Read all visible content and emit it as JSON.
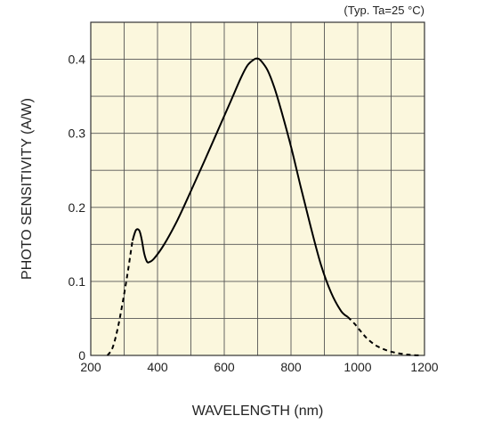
{
  "chart_data": {
    "type": "line",
    "title": "",
    "annotation": "(Typ. Ta=25 °C)",
    "xlabel": "WAVELENGTH (nm)",
    "ylabel": "PHOTO SENSITIVITY (A/W)",
    "xlim": [
      200,
      1200
    ],
    "ylim": [
      0,
      0.45
    ],
    "xticks": [
      200,
      400,
      600,
      800,
      1000,
      1200
    ],
    "xtick_labels": [
      "200",
      "400",
      "600",
      "800",
      "1000",
      "1200"
    ],
    "yticks": [
      0,
      0.1,
      0.2,
      0.3,
      0.4
    ],
    "ytick_labels": [
      "0",
      "0.1",
      "0.2",
      "0.3",
      "0.4"
    ],
    "grid": true,
    "x_grid_step": 100,
    "y_grid_step": 0.05,
    "plot_background": "#fbf7dd",
    "grid_color": "#555555",
    "line_color": "#000000",
    "series": [
      {
        "style": "dashed",
        "points": [
          [
            250,
            0
          ],
          [
            265,
            0.01
          ],
          [
            280,
            0.035
          ],
          [
            295,
            0.07
          ],
          [
            310,
            0.11
          ],
          [
            320,
            0.14
          ],
          [
            325,
            0.155
          ]
        ]
      },
      {
        "style": "solid",
        "points": [
          [
            325,
            0.155
          ],
          [
            335,
            0.169
          ],
          [
            345,
            0.169
          ],
          [
            352,
            0.158
          ],
          [
            360,
            0.138
          ],
          [
            368,
            0.127
          ],
          [
            375,
            0.126
          ],
          [
            390,
            0.131
          ],
          [
            420,
            0.15
          ],
          [
            460,
            0.183
          ],
          [
            500,
            0.222
          ],
          [
            540,
            0.262
          ],
          [
            580,
            0.303
          ],
          [
            620,
            0.344
          ],
          [
            650,
            0.375
          ],
          [
            670,
            0.392
          ],
          [
            690,
            0.4
          ],
          [
            700,
            0.401
          ],
          [
            710,
            0.398
          ],
          [
            730,
            0.385
          ],
          [
            750,
            0.362
          ],
          [
            770,
            0.332
          ],
          [
            800,
            0.282
          ],
          [
            830,
            0.226
          ],
          [
            860,
            0.172
          ],
          [
            890,
            0.122
          ],
          [
            920,
            0.085
          ],
          [
            950,
            0.06
          ],
          [
            970,
            0.052
          ]
        ]
      },
      {
        "style": "dashed",
        "points": [
          [
            970,
            0.052
          ],
          [
            990,
            0.043
          ],
          [
            1010,
            0.032
          ],
          [
            1030,
            0.022
          ],
          [
            1060,
            0.012
          ],
          [
            1100,
            0.005
          ],
          [
            1150,
            0.001
          ],
          [
            1190,
            0
          ]
        ]
      }
    ]
  }
}
